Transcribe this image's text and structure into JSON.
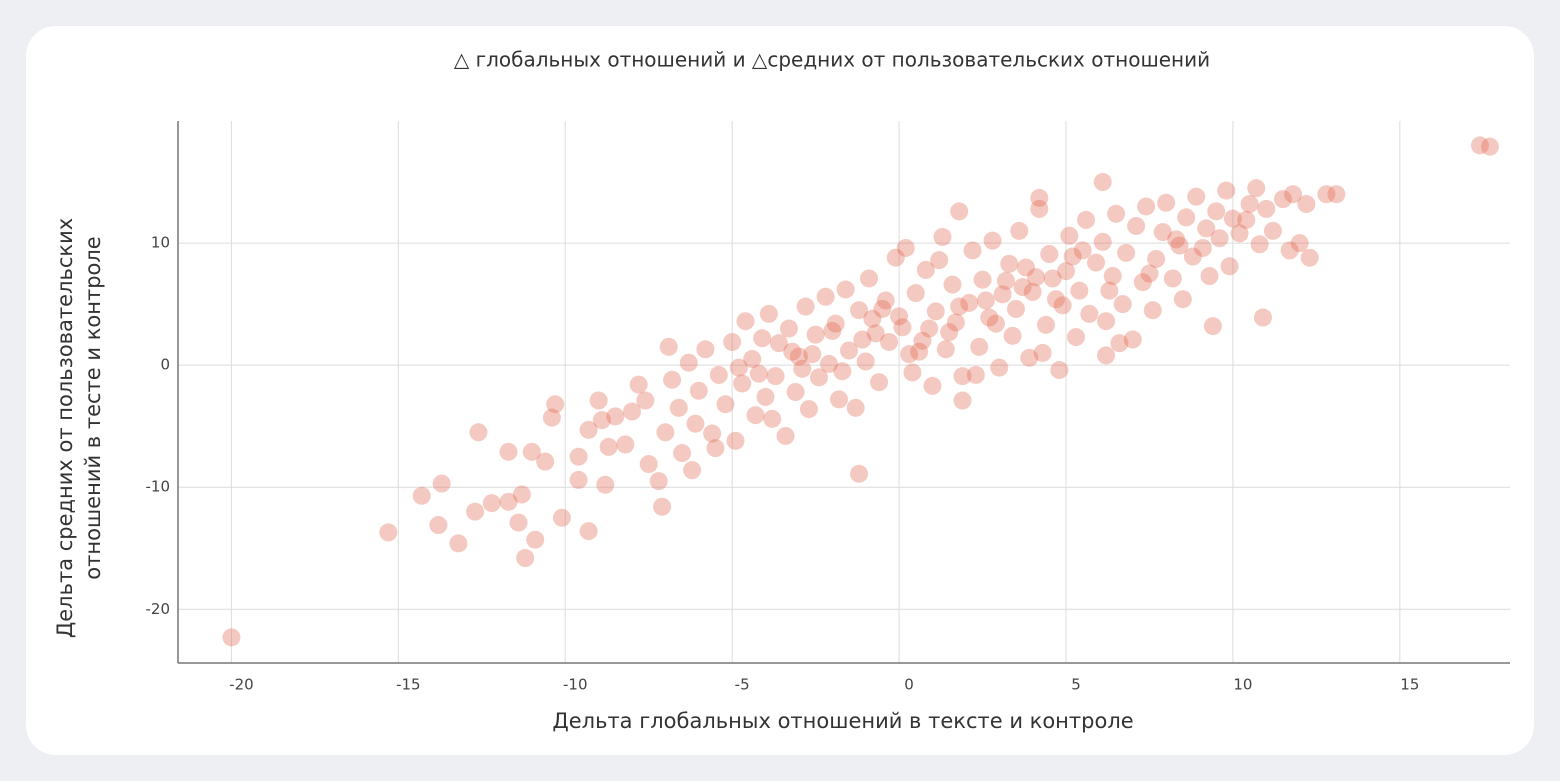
{
  "chart_data": {
    "type": "scatter",
    "title": "△ глобальных отношений и △средних от пользовательских отношений",
    "x_label": "Дельта глобальных отношений в тексте и контроле",
    "y_label": [
      "Дельта средних от пользовательских",
      "отношений в тесте и контроле"
    ],
    "color": "#e0654c",
    "xlim": [
      -21.6,
      18.3
    ],
    "ylim": [
      -24.4,
      20
    ],
    "xticks": [
      -20,
      -15,
      -10,
      -5,
      0,
      5,
      10,
      15
    ],
    "yticks": [
      -20,
      -10,
      0,
      10
    ],
    "grid": true,
    "x": [
      -20.0,
      -15.3,
      -14.3,
      -13.7,
      -13.8,
      -13.2,
      -12.6,
      -12.7,
      -12.2,
      -11.7,
      -11.3,
      -11.4,
      -11.2,
      -10.9,
      -11.0,
      -11.7,
      -10.6,
      -10.4,
      -10.3,
      -10.1,
      -9.6,
      -9.6,
      -9.3,
      -9.3,
      -9.0,
      -8.9,
      -8.7,
      -1.2,
      9.4,
      10.9,
      17.4,
      17.7,
      13.1,
      12.8,
      12.3,
      12.2,
      6.1,
      1.8,
      4.2,
      -6.9,
      -7.1,
      6.2,
      1.9,
      -8.2,
      -8.0,
      -7.6,
      -7.5,
      -7.2,
      -7.0,
      -6.8,
      -6.6,
      -6.5,
      -6.3,
      -6.1,
      -6.0,
      -7.8,
      -8.5,
      -8.8,
      -5.8,
      -5.6,
      -5.4,
      -5.2,
      -5.0,
      -4.9,
      -4.7,
      -4.6,
      -4.4,
      -4.3,
      -4.1,
      -4.0,
      -5.5,
      -6.2,
      -4.8,
      -3.9,
      -3.7,
      -3.6,
      -3.4,
      -3.3,
      -3.1,
      -3.0,
      -2.8,
      -2.7,
      -2.5,
      -2.4,
      -2.2,
      -2.1,
      -3.8,
      -2.9,
      -1.9,
      -1.8,
      -1.6,
      -1.5,
      -1.3,
      -1.2,
      -1.0,
      -0.9,
      -0.7,
      -0.6,
      -0.4,
      -0.3,
      -0.1,
      -1.7,
      -0.8,
      0.1,
      0.2,
      0.4,
      0.5,
      0.7,
      0.8,
      1.0,
      1.1,
      1.3,
      1.4,
      1.6,
      1.7,
      1.9,
      0.3,
      1.2,
      2.1,
      2.2,
      2.4,
      2.5,
      2.7,
      2.8,
      3.0,
      3.1,
      3.3,
      3.4,
      3.6,
      3.7,
      3.9,
      2.3,
      3.5,
      4.1,
      4.2,
      4.4,
      4.5,
      4.7,
      4.8,
      5.0,
      5.1,
      5.3,
      5.4,
      5.6,
      5.7,
      5.9,
      4.3,
      5.2,
      6.1,
      6.2,
      6.4,
      6.5,
      6.7,
      6.8,
      7.0,
      7.1,
      7.3,
      7.4,
      7.6,
      7.7,
      7.9,
      6.6,
      7.5,
      8.0,
      8.2,
      8.3,
      8.5,
      8.6,
      8.8,
      8.9,
      9.1,
      9.3,
      9.5,
      9.6,
      9.8,
      9.9,
      8.4,
      9.2,
      10.0,
      10.2,
      10.5,
      10.7,
      10.8,
      11.0,
      11.2,
      11.5,
      11.7,
      12.0,
      11.8,
      10.4,
      -2.0,
      -1.1,
      0.0,
      0.9,
      1.8,
      2.6,
      3.2,
      4.0,
      4.6,
      -3.2,
      -4.2,
      0.6,
      1.5,
      2.9,
      3.8,
      -0.5,
      -2.6,
      4.9,
      5.5,
      6.3
    ],
    "values": [
      -22.3,
      -13.7,
      -10.7,
      -9.7,
      -13.1,
      -14.6,
      -5.5,
      -12.0,
      -11.3,
      -11.2,
      -10.6,
      -12.9,
      -15.8,
      -14.3,
      -7.1,
      -7.1,
      -7.9,
      -4.3,
      -3.2,
      -12.5,
      -7.5,
      -9.4,
      -5.3,
      -13.6,
      -2.9,
      -4.5,
      -6.7,
      -8.9,
      3.2,
      3.9,
      18.0,
      17.9,
      14.0,
      14.0,
      8.8,
      13.2,
      15.0,
      12.6,
      13.7,
      1.5,
      -11.6,
      0.8,
      -2.9,
      -6.5,
      -3.8,
      -2.9,
      -8.1,
      -9.5,
      -5.5,
      -1.2,
      -3.5,
      -7.2,
      0.2,
      -4.8,
      -2.1,
      -1.6,
      -4.2,
      -9.8,
      1.3,
      -5.6,
      -0.8,
      -3.2,
      1.9,
      -6.2,
      -1.5,
      3.6,
      0.5,
      -4.1,
      2.2,
      -2.6,
      -6.8,
      -8.6,
      -0.2,
      4.2,
      -0.9,
      1.8,
      -5.8,
      3.0,
      -2.2,
      0.7,
      4.8,
      -3.6,
      2.5,
      -1.0,
      5.6,
      0.1,
      -4.4,
      -0.3,
      3.4,
      -2.8,
      6.2,
      1.2,
      -3.5,
      4.5,
      0.3,
      7.1,
      2.6,
      -1.4,
      5.3,
      1.9,
      8.8,
      -0.5,
      3.8,
      3.1,
      9.6,
      -0.6,
      5.9,
      2.0,
      7.8,
      -1.7,
      4.4,
      10.5,
      1.3,
      6.6,
      3.5,
      -0.9,
      0.9,
      8.6,
      5.1,
      9.4,
      1.5,
      7.0,
      3.9,
      10.2,
      -0.2,
      5.8,
      8.3,
      2.4,
      11.0,
      6.4,
      0.6,
      -0.8,
      4.6,
      7.2,
      12.8,
      3.3,
      9.1,
      5.4,
      -0.4,
      7.7,
      10.6,
      2.3,
      6.1,
      11.9,
      4.2,
      8.4,
      1.0,
      8.9,
      10.1,
      3.6,
      7.3,
      12.4,
      5.0,
      9.2,
      2.1,
      11.4,
      6.8,
      13.0,
      4.5,
      8.7,
      10.9,
      1.8,
      7.5,
      13.3,
      7.1,
      10.3,
      5.4,
      12.1,
      8.9,
      13.8,
      9.6,
      7.3,
      12.6,
      10.4,
      14.3,
      8.1,
      9.8,
      11.2,
      12.0,
      10.8,
      13.2,
      14.5,
      9.9,
      12.8,
      11.0,
      13.6,
      9.4,
      10.0,
      14.0,
      11.9,
      2.8,
      2.1,
      4.0,
      3.0,
      4.8,
      5.3,
      6.9,
      6.0,
      7.1,
      1.1,
      -0.7,
      1.1,
      2.7,
      3.4,
      8.0,
      4.6,
      0.9,
      4.9,
      9.4,
      6.1
    ]
  }
}
